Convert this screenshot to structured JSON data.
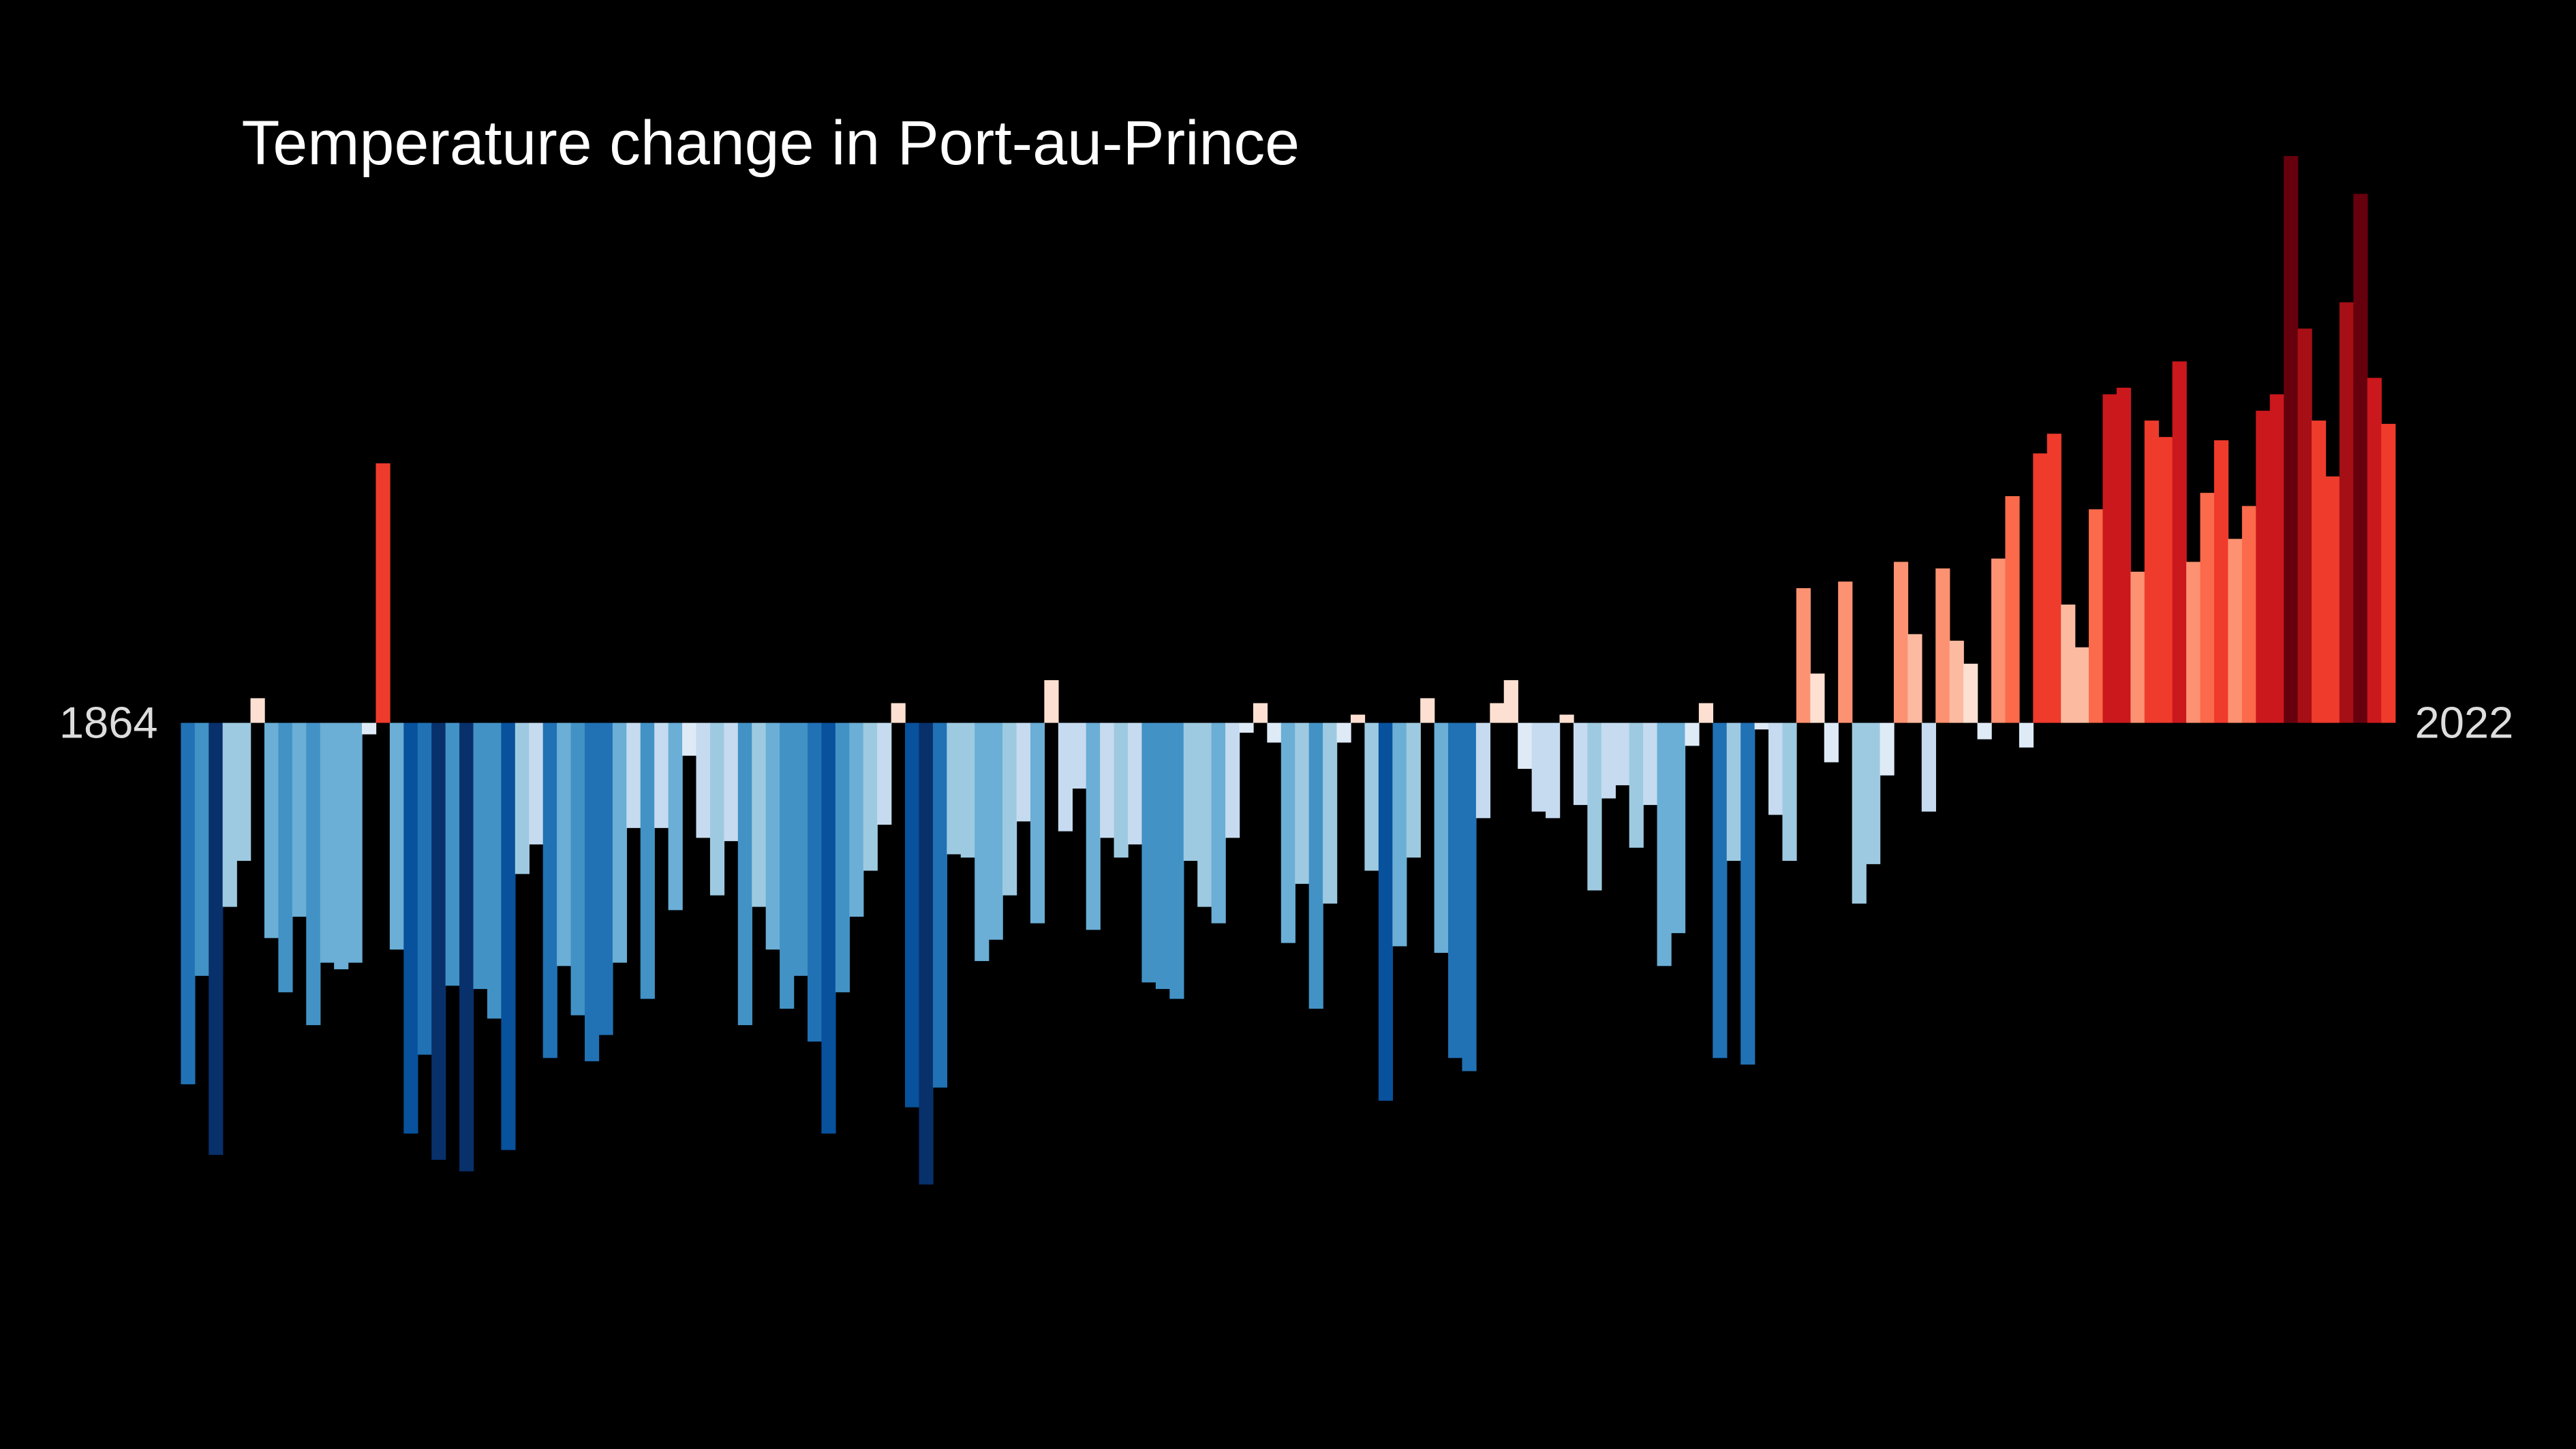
{
  "chart_data": {
    "type": "bar",
    "title": "Temperature change in Port-au-Prince",
    "categories": [
      "1864",
      null,
      null,
      null,
      null,
      null,
      null,
      null,
      null,
      null,
      null,
      null,
      null,
      null,
      null,
      null,
      null,
      null,
      null,
      null,
      null,
      null,
      null,
      null,
      null,
      null,
      null,
      null,
      null,
      null,
      null,
      null,
      null,
      null,
      null,
      null,
      null,
      null,
      null,
      null,
      null,
      null,
      null,
      null,
      null,
      null,
      null,
      null,
      null,
      null,
      null,
      null,
      null,
      null,
      null,
      null,
      null,
      null,
      null,
      null,
      null,
      null,
      null,
      null,
      null,
      null,
      null,
      null,
      null,
      null,
      null,
      null,
      null,
      null,
      null,
      null,
      null,
      null,
      null,
      null,
      null,
      null,
      null,
      null,
      null,
      null,
      null,
      null,
      null,
      null,
      null,
      null,
      null,
      null,
      null,
      null,
      null,
      null,
      null,
      null,
      null,
      null,
      null,
      null,
      null,
      null,
      null,
      null,
      null,
      null,
      null,
      null,
      null,
      null,
      null,
      null,
      null,
      null,
      null,
      null,
      null,
      null,
      null,
      null,
      null,
      null,
      null,
      null,
      null,
      null,
      null,
      null,
      null,
      null,
      null,
      null,
      null,
      null,
      null,
      null,
      null,
      null,
      null,
      null,
      null,
      null,
      null,
      null,
      null,
      null,
      null,
      null,
      null,
      null,
      null,
      null,
      null,
      null,
      "2022"
    ],
    "values": [
      -2.2,
      -1.54,
      -2.63,
      -1.12,
      -0.84,
      0.15,
      -1.31,
      -1.64,
      -1.18,
      -1.84,
      -1.46,
      -1.5,
      -1.46,
      -0.07,
      1.58,
      -1.38,
      -2.5,
      -2.02,
      -2.66,
      -1.6,
      -2.73,
      -1.62,
      -1.8,
      -2.6,
      -0.92,
      -0.74,
      -2.04,
      -1.48,
      -1.78,
      -2.06,
      -1.9,
      -1.46,
      -0.64,
      -1.68,
      -0.64,
      -1.14,
      -0.2,
      -0.7,
      -1.05,
      -0.72,
      -1.84,
      -1.12,
      -1.38,
      -1.74,
      -1.54,
      -1.94,
      -2.5,
      -1.64,
      -1.18,
      -0.9,
      -0.62,
      0.12,
      -2.34,
      -2.81,
      -2.22,
      -0.8,
      -0.82,
      -1.45,
      -1.32,
      -1.05,
      -0.6,
      -1.22,
      0.26,
      -0.66,
      -0.4,
      -1.26,
      -0.7,
      -0.82,
      -0.74,
      -1.58,
      -1.62,
      -1.68,
      -0.84,
      -1.12,
      -1.22,
      -0.7,
      -0.06,
      0.12,
      -0.12,
      -1.34,
      -0.98,
      -1.74,
      -1.1,
      -0.12,
      0.05,
      -0.9,
      -2.3,
      -1.36,
      -0.82,
      0.15,
      -1.4,
      -2.04,
      -2.12,
      -0.58,
      0.12,
      0.26,
      -0.28,
      -0.54,
      -0.58,
      0.05,
      -0.5,
      -1.02,
      -0.46,
      -0.38,
      -0.76,
      -0.5,
      -1.48,
      -1.28,
      -0.14,
      0.12,
      -2.04,
      -0.84,
      -2.08,
      -0.04,
      -0.56,
      -0.84,
      0.82,
      0.3,
      -0.24,
      0.86,
      -1.1,
      -0.86,
      -0.32,
      0.98,
      0.54,
      -0.54,
      0.94,
      0.5,
      0.36,
      -0.1,
      1.0,
      1.38,
      -0.15,
      1.64,
      1.76,
      0.72,
      0.46,
      1.3,
      2.0,
      2.04,
      0.92,
      1.84,
      1.74,
      2.2,
      0.98,
      1.4,
      1.72,
      1.12,
      1.32,
      1.9,
      2.0,
      3.45,
      2.4,
      1.84,
      1.5,
      2.56,
      3.22,
      2.1,
      1.82
    ],
    "ylim": [
      -4.42,
      4.4
    ],
    "colormap": [
      "#08306b",
      "#08519c",
      "#2171b5",
      "#4292c6",
      "#6baed6",
      "#9ecae1",
      "#c6dbef",
      "#deebf7",
      "#fee0d2",
      "#fcbba1",
      "#fc9272",
      "#fb6a4a",
      "#ef3b2c",
      "#cb181d",
      "#a50f15",
      "#67000d"
    ],
    "color_limits": [
      -3,
      3
    ]
  }
}
